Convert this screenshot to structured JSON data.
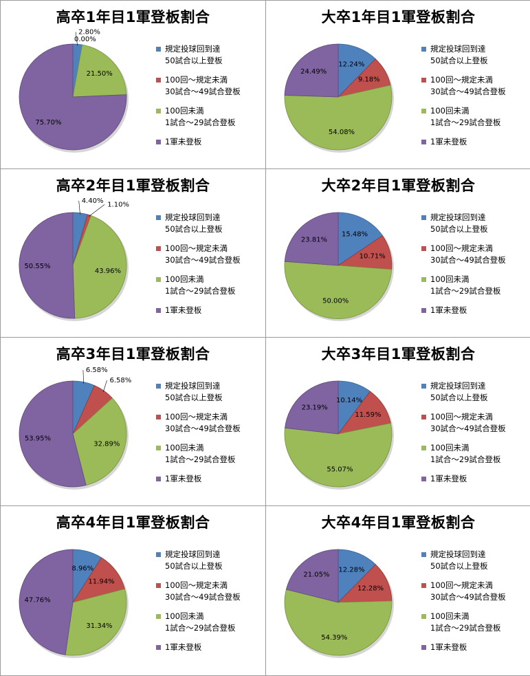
{
  "legend": {
    "items": [
      {
        "line1": "規定投球回到達",
        "line2": "50試合以上登板",
        "color": "#4f81bd"
      },
      {
        "line1": "100回～規定未満",
        "line2": "30試合～49試合登板",
        "color": "#c0504d"
      },
      {
        "line1": "100回未満",
        "line2": "1試合～29試合登板",
        "color": "#9bbb59"
      },
      {
        "line1": "1軍未登板",
        "line2": "",
        "color": "#8064a2"
      }
    ]
  },
  "chart_data": [
    {
      "type": "pie",
      "title": "高卒1年目1軍登板割合",
      "values": [
        2.8,
        0.0,
        21.5,
        75.7
      ],
      "labels": [
        "2.80%",
        "0.00%",
        "21.50%",
        "75.70%"
      ]
    },
    {
      "type": "pie",
      "title": "大卒1年目1軍登板割合",
      "values": [
        12.24,
        9.18,
        54.08,
        24.49
      ],
      "labels": [
        "12.24%",
        "9.18%",
        "54.08%",
        "24.49%"
      ]
    },
    {
      "type": "pie",
      "title": "高卒2年目1軍登板割合",
      "values": [
        4.4,
        1.1,
        43.96,
        50.55
      ],
      "labels": [
        "4.40%",
        "1.10%",
        "43.96%",
        "50.55%"
      ]
    },
    {
      "type": "pie",
      "title": "大卒2年目1軍登板割合",
      "values": [
        15.48,
        10.71,
        50.0,
        23.81
      ],
      "labels": [
        "15.48%",
        "10.71%",
        "50.00%",
        "23.81%"
      ]
    },
    {
      "type": "pie",
      "title": "高卒3年目1軍登板割合",
      "values": [
        6.58,
        6.58,
        32.89,
        53.95
      ],
      "labels": [
        "6.58%",
        "6.58%",
        "32.89%",
        "53.95%"
      ]
    },
    {
      "type": "pie",
      "title": "大卒3年目1軍登板割合",
      "values": [
        10.14,
        11.59,
        55.07,
        23.19
      ],
      "labels": [
        "10.14%",
        "11.59%",
        "55.07%",
        "23.19%"
      ]
    },
    {
      "type": "pie",
      "title": "高卒4年目1軍登板割合",
      "values": [
        8.96,
        11.94,
        31.34,
        47.76
      ],
      "labels": [
        "8.96%",
        "11.94%",
        "31.34%",
        "47.76%"
      ]
    },
    {
      "type": "pie",
      "title": "大卒4年目1軍登板割合",
      "values": [
        12.28,
        12.28,
        54.39,
        21.05
      ],
      "labels": [
        "12.28%",
        "12.28%",
        "54.39%",
        "21.05%"
      ]
    }
  ]
}
